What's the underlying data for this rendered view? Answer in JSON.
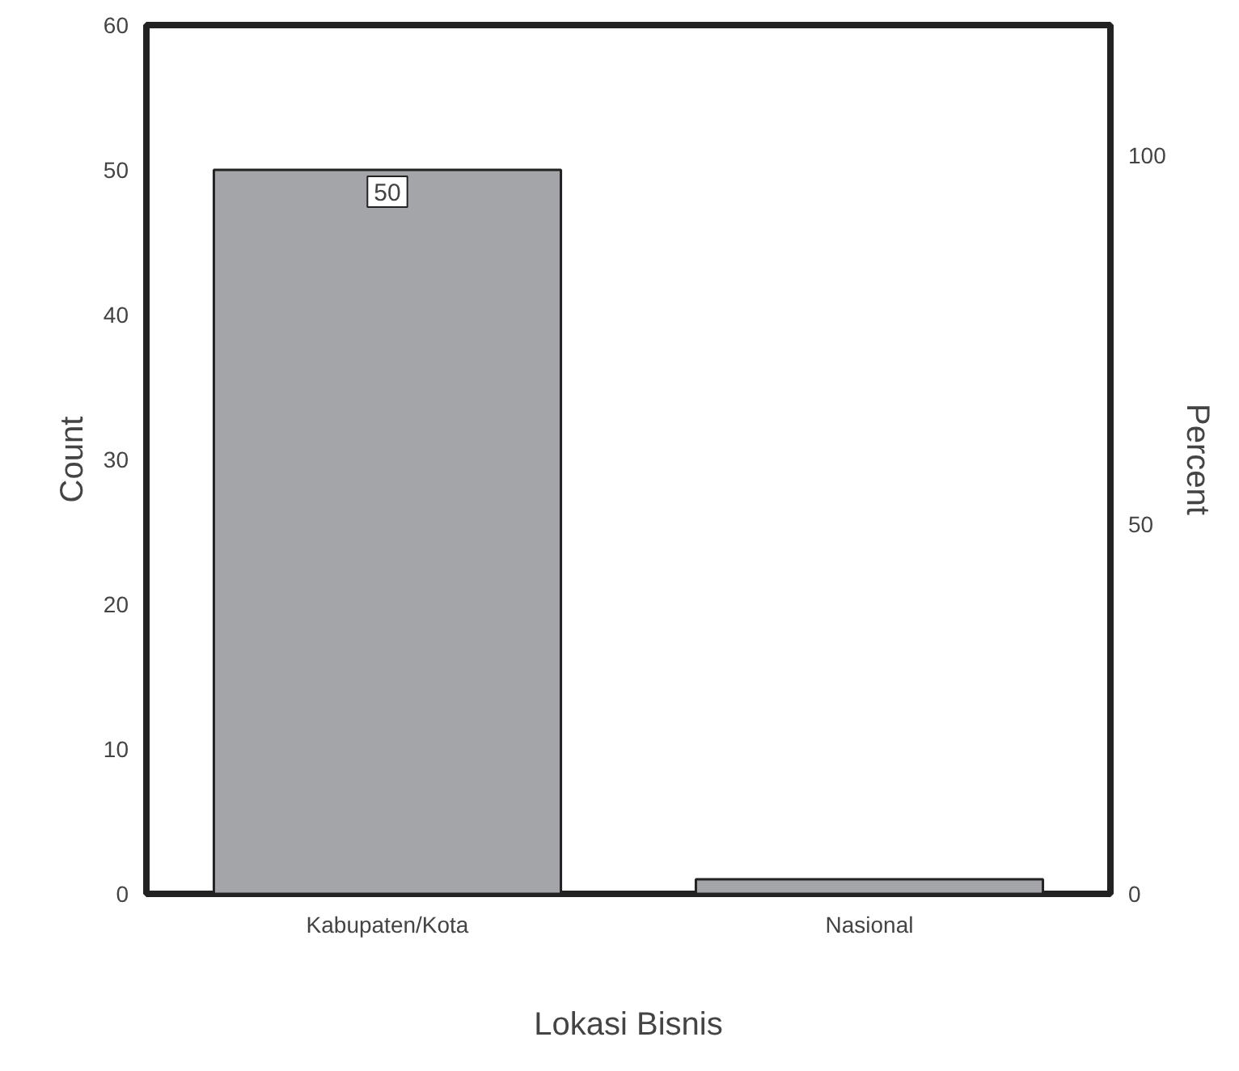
{
  "chart_data": {
    "type": "bar",
    "xlabel": "Lokasi Bisnis",
    "ylabel": "Count",
    "y2label": "Percent",
    "categories": [
      "Kabupaten/Kota",
      "Nasional"
    ],
    "values": [
      50,
      1
    ],
    "color": "#a4a5a8",
    "value_labels": [
      "50",
      null
    ],
    "ylim": [
      0,
      60
    ],
    "yticks": [
      0,
      10,
      20,
      30,
      40,
      50,
      60
    ],
    "y2lim": [
      0,
      117.6
    ],
    "y2ticks": [
      0,
      50,
      100
    ],
    "grid": false
  }
}
